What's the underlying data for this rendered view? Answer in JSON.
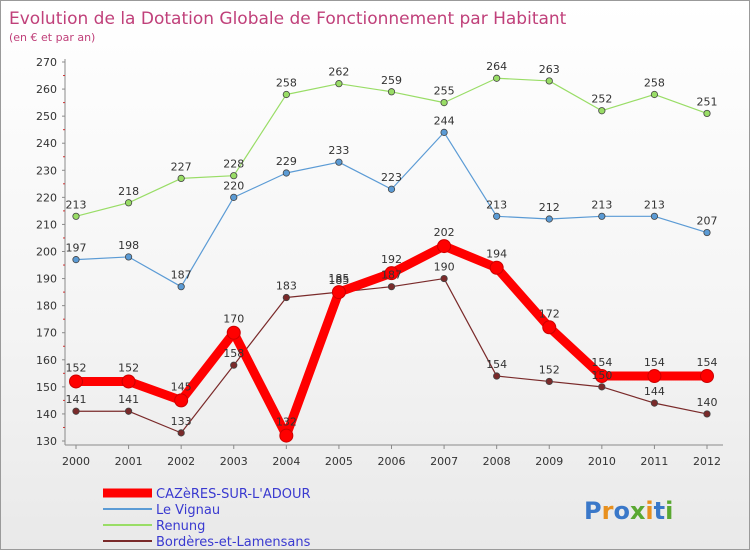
{
  "chart_data": {
    "type": "line",
    "title": "Evolution de la Dotation Globale de Fonctionnement par Habitant",
    "subtitle": "(en € et par an)",
    "xlabel": "",
    "ylabel": "",
    "x": [
      "2000",
      "2001",
      "2002",
      "2003",
      "2004",
      "2005",
      "2006",
      "2007",
      "2008",
      "2009",
      "2010",
      "2011",
      "2012"
    ],
    "ylim": [
      130,
      270
    ],
    "yticks": [
      130,
      140,
      150,
      160,
      170,
      180,
      190,
      200,
      210,
      220,
      230,
      240,
      250,
      260,
      270
    ],
    "grid": false,
    "legend": "bottom-left",
    "series": [
      {
        "name": "CAZèRES-SUR-L'ADOUR",
        "color": "#ff0000",
        "values": [
          152,
          152,
          145,
          170,
          132,
          185,
          192,
          202,
          194,
          172,
          154,
          154,
          154
        ]
      },
      {
        "name": "Le Vignau",
        "color": "#5b9bd5",
        "values": [
          197,
          198,
          187,
          220,
          229,
          233,
          223,
          244,
          213,
          212,
          213,
          213,
          207
        ]
      },
      {
        "name": "Renung",
        "color": "#99dd66",
        "values": [
          213,
          218,
          227,
          228,
          258,
          262,
          259,
          255,
          264,
          263,
          252,
          258,
          251
        ]
      },
      {
        "name": "Bordères-et-Lamensans",
        "color": "#7a2a2a",
        "values": [
          141,
          141,
          133,
          158,
          183,
          185,
          187,
          190,
          154,
          152,
          150,
          144,
          140
        ]
      }
    ]
  },
  "logo": {
    "text": "Proxiti",
    "letters": [
      "P",
      "r",
      "o",
      "x",
      "i",
      "t",
      "i"
    ],
    "colors": [
      "#3a78c9",
      "#e8901e",
      "#3a78c9",
      "#5aa832",
      "#e8901e",
      "#3a78c9",
      "#5aa832"
    ]
  }
}
